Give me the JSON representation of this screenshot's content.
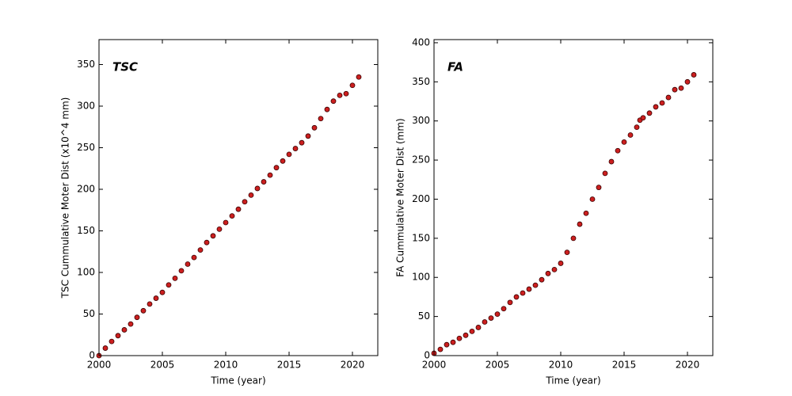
{
  "chart_data": [
    {
      "type": "scatter",
      "annotation": "TSC",
      "xlabel": "Time (year)",
      "ylabel": "TSC Cummulative Moter Dist (x10^4 mm)",
      "xlim": [
        2000,
        2022
      ],
      "ylim": [
        0,
        380
      ],
      "xticks": [
        2000,
        2005,
        2010,
        2015,
        2020
      ],
      "yticks": [
        0,
        50,
        100,
        150,
        200,
        250,
        300,
        350
      ],
      "color": "#cc1f1f",
      "x": [
        2000,
        2000.5,
        2001,
        2001.5,
        2002,
        2002.5,
        2003,
        2003.5,
        2004,
        2004.5,
        2005,
        2005.5,
        2006,
        2006.5,
        2007,
        2007.5,
        2008,
        2008.5,
        2009,
        2009.5,
        2010,
        2010.5,
        2011,
        2011.5,
        2012,
        2012.5,
        2013,
        2013.5,
        2014,
        2014.5,
        2015,
        2015.5,
        2016,
        2016.5,
        2017,
        2017.5,
        2018,
        2018.5,
        2019,
        2019.5,
        2020,
        2020.5
      ],
      "values": [
        0,
        9,
        17,
        24,
        31,
        38,
        46,
        54,
        62,
        69,
        76,
        85,
        93,
        102,
        110,
        118,
        127,
        136,
        144,
        152,
        160,
        168,
        176,
        185,
        193,
        201,
        209,
        217,
        226,
        234,
        242,
        249,
        256,
        264,
        274,
        285,
        296,
        306,
        313,
        315,
        325,
        335
      ]
    },
    {
      "type": "scatter",
      "annotation": "FA",
      "xlabel": "Time (year)",
      "ylabel": "FA Cummulative Moter Dist (mm)",
      "xlim": [
        2000,
        2022
      ],
      "ylim": [
        0,
        404
      ],
      "xticks": [
        2000,
        2005,
        2010,
        2015,
        2020
      ],
      "yticks": [
        0,
        50,
        100,
        150,
        200,
        250,
        300,
        350,
        400
      ],
      "color": "#cc1f1f",
      "x": [
        2000,
        2000.5,
        2001,
        2001.5,
        2002,
        2002.5,
        2003,
        2003.5,
        2004,
        2004.5,
        2005,
        2005.5,
        2006,
        2006.5,
        2007,
        2007.5,
        2008,
        2008.5,
        2009,
        2009.5,
        2010,
        2010.5,
        2011,
        2011.5,
        2012,
        2012.5,
        2013,
        2013.5,
        2014,
        2014.5,
        2015,
        2015.5,
        2016,
        2016.25,
        2016.5,
        2017,
        2017.5,
        2018,
        2018.5,
        2019,
        2019.5,
        2020,
        2020.5
      ],
      "values": [
        3,
        8,
        14,
        17,
        22,
        26,
        31,
        36,
        43,
        48,
        53,
        60,
        68,
        75,
        80,
        85,
        90,
        97,
        105,
        110,
        118,
        132,
        150,
        168,
        182,
        200,
        215,
        233,
        248,
        262,
        273,
        282,
        292,
        301,
        304,
        310,
        318,
        323,
        330,
        340,
        342,
        350,
        359
      ]
    }
  ]
}
